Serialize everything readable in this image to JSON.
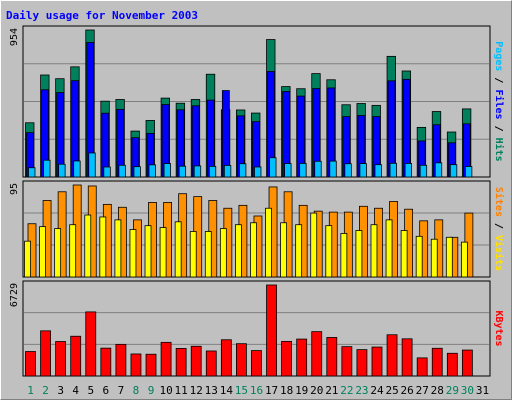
{
  "chart_data": {
    "title": "Daily usage for November 2003",
    "x": [
      "1",
      "2",
      "3",
      "4",
      "5",
      "6",
      "7",
      "8",
      "9",
      "10",
      "11",
      "12",
      "13",
      "14",
      "15",
      "16",
      "17",
      "18",
      "19",
      "20",
      "21",
      "22",
      "23",
      "24",
      "25",
      "26",
      "27",
      "28",
      "29",
      "30",
      "31"
    ],
    "weekend_days": [
      "1",
      "2",
      "8",
      "9",
      "15",
      "16",
      "22",
      "23",
      "29",
      "30"
    ],
    "panels": [
      {
        "name": "hits-files-pages",
        "type": "bar",
        "ymax_label": "954",
        "ylim": [
          0,
          954
        ],
        "side_labels": [
          {
            "text": "Pages",
            "color": "#00c0ff"
          },
          {
            "text": " / ",
            "color": "#000000"
          },
          {
            "text": "Files",
            "color": "#0000ff"
          },
          {
            "text": " / ",
            "color": "#000000"
          },
          {
            "text": "Hits",
            "color": "#00805c"
          }
        ],
        "series": [
          {
            "name": "Hits",
            "color": "#00805c",
            "values": [
              352,
              662,
              638,
              715,
              954,
              492,
              503,
              298,
              367,
              512,
              479,
              503,
              667,
              436,
              435,
              415,
              892,
              587,
              573,
              671,
              631,
              469,
              477,
              465,
              783,
              688,
              322,
              425,
              292,
              442,
              0
            ]
          },
          {
            "name": "Files",
            "color": "#0000ff",
            "values": [
              288,
              566,
              548,
              625,
              873,
              414,
              439,
              255,
              283,
              470,
              436,
              462,
              499,
              561,
              397,
              360,
              685,
              555,
              525,
              574,
              578,
              392,
              399,
              392,
              624,
              634,
              234,
              339,
              222,
              345,
              0
            ]
          },
          {
            "name": "Pages",
            "color": "#00c0ff",
            "values": [
              60,
              109,
              83,
              104,
              156,
              65,
              76,
              67,
              79,
              87,
              70,
              72,
              69,
              75,
              86,
              65,
              125,
              87,
              88,
              102,
              103,
              86,
              87,
              80,
              89,
              88,
              76,
              92,
              80,
              68,
              0
            ]
          }
        ]
      },
      {
        "name": "visits-sites",
        "type": "bar",
        "ymax_label": "95",
        "ylim": [
          0,
          95
        ],
        "side_labels": [
          {
            "text": "Sites",
            "color": "#ff8000"
          },
          {
            "text": " / ",
            "color": "#000000"
          },
          {
            "text": "Visits",
            "color": "#ffe000"
          }
        ],
        "series": [
          {
            "name": "Visits",
            "color": "#ff9000",
            "values": [
              55,
              79,
              88,
              95,
              94,
              75,
              72,
              59,
              77,
              77,
              86,
              83,
              79,
              71,
              74,
              63,
              93,
              88,
              74,
              68,
              67,
              67,
              73,
              71,
              78,
              70,
              58,
              59,
              41,
              66,
              0
            ]
          },
          {
            "name": "Sites",
            "color": "#ffff00",
            "values": [
              37,
              52,
              50,
              54,
              64,
              62,
              59,
              49,
              53,
              51,
              57,
              47,
              47,
              50,
              54,
              56,
              71,
              56,
              54,
              66,
              53,
              45,
              48,
              54,
              59,
              48,
              42,
              39,
              41,
              36,
              0
            ]
          }
        ]
      },
      {
        "name": "kbytes",
        "type": "bar",
        "ymax_label": "6729",
        "ylim": [
          0,
          6729
        ],
        "side_labels": [
          {
            "text": "KBytes",
            "color": "#ff0000"
          }
        ],
        "series": [
          {
            "name": "KBytes",
            "color": "#ff0000",
            "values": [
              1810,
              3340,
              2550,
              2940,
              4740,
              2060,
              2340,
              1630,
              1610,
              2490,
              2040,
              2200,
              1850,
              2680,
              2390,
              1880,
              6729,
              2560,
              2730,
              3280,
              2850,
              2170,
              1950,
              2140,
              3050,
              2750,
              1340,
              2050,
              1680,
              1920,
              0
            ]
          }
        ]
      }
    ]
  }
}
